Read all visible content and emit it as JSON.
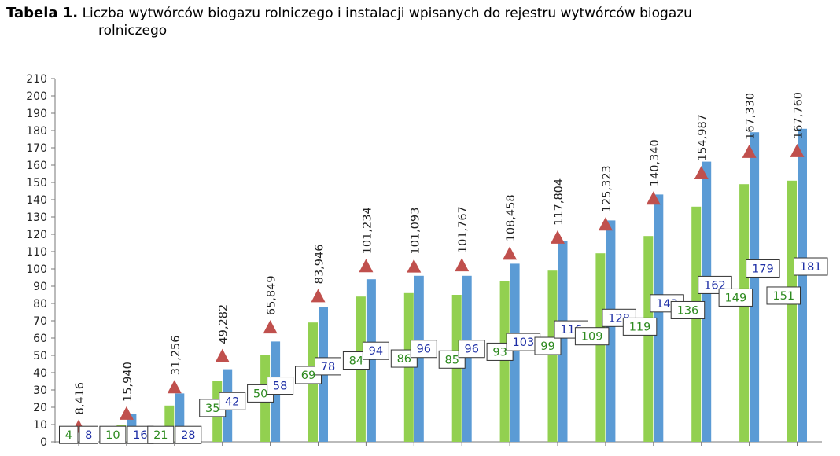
{
  "heading": {
    "tag": "Tabela 1.",
    "text_line1": "Liczba wytwórców biogazu rolniczego i instalacji wpisanych do rejestru wytwórców biogazu",
    "text_line2": "rolniczego"
  },
  "colors": {
    "green_bar": "#92d050",
    "blue_bar": "#5b9bd5",
    "triangle": "#c0504d",
    "green_text": "#2d8a1f",
    "blue_text": "#1e2fa6"
  },
  "chart_data": {
    "type": "bar",
    "ylim": [
      0,
      210
    ],
    "yticks": [
      0,
      10,
      20,
      30,
      40,
      50,
      60,
      70,
      80,
      90,
      100,
      110,
      120,
      130,
      140,
      150,
      160,
      170,
      180,
      190,
      200,
      210
    ],
    "grid": false,
    "series": [
      {
        "values": [
          4,
          10,
          21,
          35,
          50,
          69,
          84,
          86,
          85,
          93,
          99,
          109,
          119,
          136,
          149,
          151
        ]
      },
      {
        "values": [
          8,
          16,
          28,
          42,
          58,
          78,
          94,
          96,
          96,
          103,
          116,
          128,
          143,
          162,
          179,
          181
        ]
      },
      {
        "values": [
          8.416,
          15.94,
          31.256,
          49.282,
          65.849,
          83.946,
          101.234,
          101.093,
          101.767,
          108.458,
          117.804,
          125.323,
          140.34,
          154.987,
          167.33,
          167.76
        ]
      }
    ],
    "marker_labels": [
      "8,416",
      "15,940",
      "31,256",
      "49,282",
      "65,849",
      "83,946",
      "101,234",
      "101,093",
      "101,767",
      "108,458",
      "117,804",
      "125,323",
      "140,340",
      "154,987",
      "167,330",
      "167,760"
    ]
  }
}
